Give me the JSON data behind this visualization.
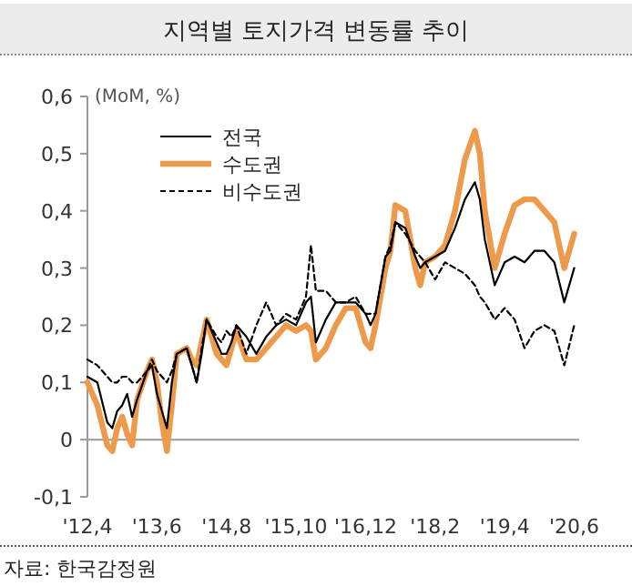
{
  "chart_data": {
    "type": "line",
    "title": "지역별 토지가격 변동률 추이",
    "ylabel": "(MoM, %)",
    "annotations": [
      "자료: 한국감정원"
    ],
    "x": [
      "2012-04",
      "2012-06",
      "2012-08",
      "2012-09",
      "2012-10",
      "2012-11",
      "2012-12",
      "2013-01",
      "2013-02",
      "2013-04",
      "2013-05",
      "2013-06",
      "2013-07",
      "2013-08",
      "2013-09",
      "2013-10",
      "2013-12",
      "2014-01",
      "2014-02",
      "2014-03",
      "2014-04",
      "2014-06",
      "2014-07",
      "2014-08",
      "2014-09",
      "2014-10",
      "2014-12",
      "2015-02",
      "2015-04",
      "2015-06",
      "2015-08",
      "2015-10",
      "2015-12",
      "2016-01",
      "2016-02",
      "2016-04",
      "2016-06",
      "2016-08",
      "2016-10",
      "2016-12",
      "2017-01",
      "2017-02",
      "2017-04",
      "2017-05",
      "2017-06",
      "2017-08",
      "2017-10",
      "2017-11",
      "2017-12",
      "2018-02",
      "2018-04",
      "2018-06",
      "2018-08",
      "2018-10",
      "2018-11",
      "2018-12",
      "2019-02",
      "2019-04",
      "2019-06",
      "2019-08",
      "2019-10",
      "2019-12",
      "2020-02",
      "2020-04",
      "2020-06"
    ],
    "series": [
      {
        "name": "전국",
        "color": "#000000",
        "line_style": "solid",
        "values": [
          0.11,
          0.1,
          0.03,
          0.02,
          0.05,
          0.06,
          0.08,
          0.04,
          0.07,
          0.12,
          0.13,
          0.08,
          0.05,
          0.02,
          0.1,
          0.15,
          0.16,
          0.13,
          0.1,
          0.15,
          0.21,
          0.17,
          0.15,
          0.15,
          0.17,
          0.2,
          0.18,
          0.15,
          0.18,
          0.2,
          0.21,
          0.2,
          0.24,
          0.25,
          0.17,
          0.21,
          0.24,
          0.24,
          0.24,
          0.22,
          0.2,
          0.22,
          0.32,
          0.33,
          0.38,
          0.37,
          0.32,
          0.3,
          0.31,
          0.32,
          0.33,
          0.37,
          0.42,
          0.45,
          0.42,
          0.35,
          0.27,
          0.31,
          0.32,
          0.31,
          0.33,
          0.33,
          0.31,
          0.24,
          0.3
        ]
      },
      {
        "name": "수도권",
        "color": "#ee9a4d",
        "line_style": "solid",
        "values": [
          0.1,
          0.06,
          -0.01,
          -0.02,
          0.02,
          0.04,
          0.01,
          -0.01,
          0.07,
          0.12,
          0.14,
          0.1,
          0.03,
          -0.02,
          0.06,
          0.15,
          0.16,
          0.14,
          0.13,
          0.17,
          0.21,
          0.15,
          0.14,
          0.13,
          0.16,
          0.19,
          0.14,
          0.14,
          0.16,
          0.18,
          0.2,
          0.19,
          0.2,
          0.19,
          0.14,
          0.16,
          0.2,
          0.23,
          0.23,
          0.17,
          0.16,
          0.2,
          0.3,
          0.33,
          0.41,
          0.4,
          0.3,
          0.27,
          0.31,
          0.32,
          0.34,
          0.4,
          0.49,
          0.54,
          0.5,
          0.4,
          0.3,
          0.36,
          0.41,
          0.42,
          0.42,
          0.4,
          0.38,
          0.3,
          0.36
        ]
      },
      {
        "name": "비수도권",
        "color": "#000000",
        "line_style": "dashed",
        "values": [
          0.14,
          0.13,
          0.11,
          0.1,
          0.1,
          0.11,
          0.11,
          0.1,
          0.1,
          0.12,
          0.14,
          0.12,
          0.11,
          0.1,
          0.12,
          0.15,
          0.16,
          0.13,
          0.1,
          0.16,
          0.21,
          0.18,
          0.17,
          0.19,
          0.18,
          0.2,
          0.15,
          0.2,
          0.24,
          0.2,
          0.22,
          0.21,
          0.25,
          0.34,
          0.26,
          0.26,
          0.24,
          0.24,
          0.25,
          0.22,
          0.22,
          0.22,
          0.32,
          0.34,
          0.38,
          0.36,
          0.33,
          0.32,
          0.31,
          0.28,
          0.31,
          0.3,
          0.29,
          0.27,
          0.25,
          0.24,
          0.21,
          0.23,
          0.21,
          0.16,
          0.19,
          0.2,
          0.19,
          0.13,
          0.2
        ]
      }
    ],
    "xlim": [
      "2012-04",
      "2020-07"
    ],
    "xticks": [
      {
        "value": "2012-04",
        "label": "'12,4"
      },
      {
        "value": "2013-06",
        "label": "'13,6"
      },
      {
        "value": "2014-08",
        "label": "'14,8"
      },
      {
        "value": "2015-10",
        "label": "'15,10"
      },
      {
        "value": "2016-12",
        "label": "'16,12"
      },
      {
        "value": "2018-02",
        "label": "'18,2"
      },
      {
        "value": "2019-04",
        "label": "'19,4"
      },
      {
        "value": "2020-06",
        "label": "'20,6"
      }
    ],
    "ylim": [
      -0.1,
      0.6
    ],
    "yticks": [
      {
        "value": -0.1,
        "label": "-0,1"
      },
      0,
      {
        "value": 0.1,
        "label": "0,1"
      },
      {
        "value": 0.2,
        "label": "0,2"
      },
      {
        "value": 0.3,
        "label": "0,3"
      },
      {
        "value": 0.4,
        "label": "0,4"
      },
      {
        "value": 0.5,
        "label": "0,5"
      },
      {
        "value": 0.6,
        "label": "0,6"
      }
    ],
    "legend": "top left"
  }
}
